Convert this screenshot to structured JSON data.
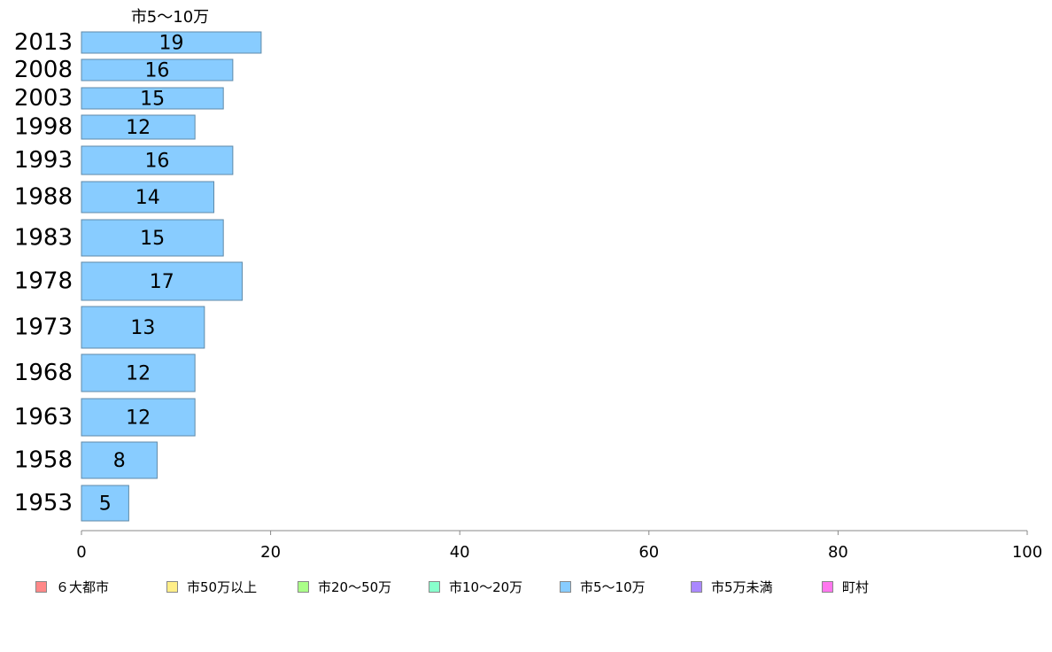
{
  "chart_data": {
    "type": "bar",
    "orientation": "horizontal",
    "series_title": "市5〜10万",
    "categories": [
      "2013",
      "2008",
      "2003",
      "1998",
      "1993",
      "1988",
      "1983",
      "1978",
      "1973",
      "1968",
      "1963",
      "1958",
      "1953"
    ],
    "series": [
      {
        "name": "市5〜10万",
        "values": [
          19,
          16,
          15,
          12,
          16,
          14,
          15,
          17,
          13,
          12,
          12,
          8,
          5
        ],
        "labels": [
          "19",
          "16",
          "15",
          "12",
          "16",
          "14",
          "15",
          "17",
          "13",
          "12",
          "12",
          "8",
          "5"
        ],
        "color": "#88ccff"
      }
    ],
    "xlim": [
      0,
      100
    ],
    "xticks": [
      0,
      20,
      40,
      60,
      80,
      100
    ],
    "xtick_labels": [
      "0",
      "20",
      "40",
      "60",
      "80",
      "100"
    ],
    "grid": false,
    "legend_position": "bottom",
    "legend": [
      {
        "label": "６大都市",
        "color": "#ff8888"
      },
      {
        "label": "市50万以上",
        "color": "#ffee88"
      },
      {
        "label": "市20〜50万",
        "color": "#aaff88"
      },
      {
        "label": "市10〜20万",
        "color": "#88ffcc"
      },
      {
        "label": "市5〜10万",
        "color": "#88ccff"
      },
      {
        "label": "市5万未満",
        "color": "#aa88ff"
      },
      {
        "label": "町村",
        "color": "#ff77ee"
      }
    ]
  }
}
